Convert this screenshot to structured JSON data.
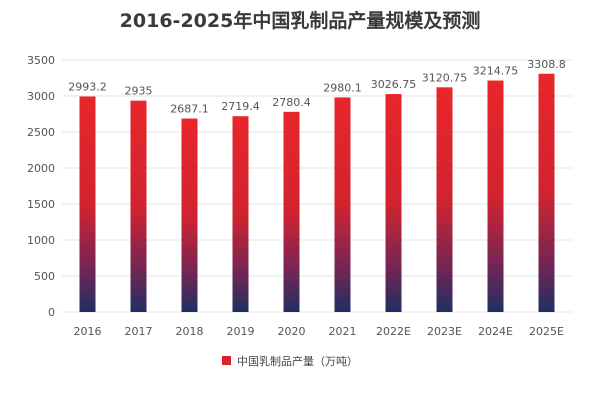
{
  "chart_data": {
    "type": "bar",
    "title": "2016-2025年中国乳制品产量规模及预测",
    "categories": [
      "2016",
      "2017",
      "2018",
      "2019",
      "2020",
      "2021",
      "2022E",
      "2023E",
      "2024E",
      "2025E"
    ],
    "series": [
      {
        "name": "中国乳制品产量（万吨）",
        "values": [
          2993.2,
          2935,
          2687.1,
          2719.4,
          2780.4,
          2980.1,
          3026.75,
          3120.75,
          3214.75,
          3308.8
        ],
        "labels": [
          "2993.2",
          "2935",
          "2687.1",
          "2719.4",
          "2780.4",
          "2980.1",
          "3026.75",
          "3120.75",
          "3214.75",
          "3308.8"
        ]
      }
    ],
    "yticks": [
      0,
      500,
      1000,
      1500,
      2000,
      2500,
      3000,
      3500
    ],
    "ylim": [
      0,
      3500
    ],
    "xlabel": "",
    "ylabel": "",
    "grid": true,
    "legend_position": "bottom",
    "colors": {
      "bar_top": "#e8262b",
      "bar_mid": "#7a2552",
      "bar_bottom": "#1f2f63",
      "legend_swatch": "#d9232a"
    }
  }
}
